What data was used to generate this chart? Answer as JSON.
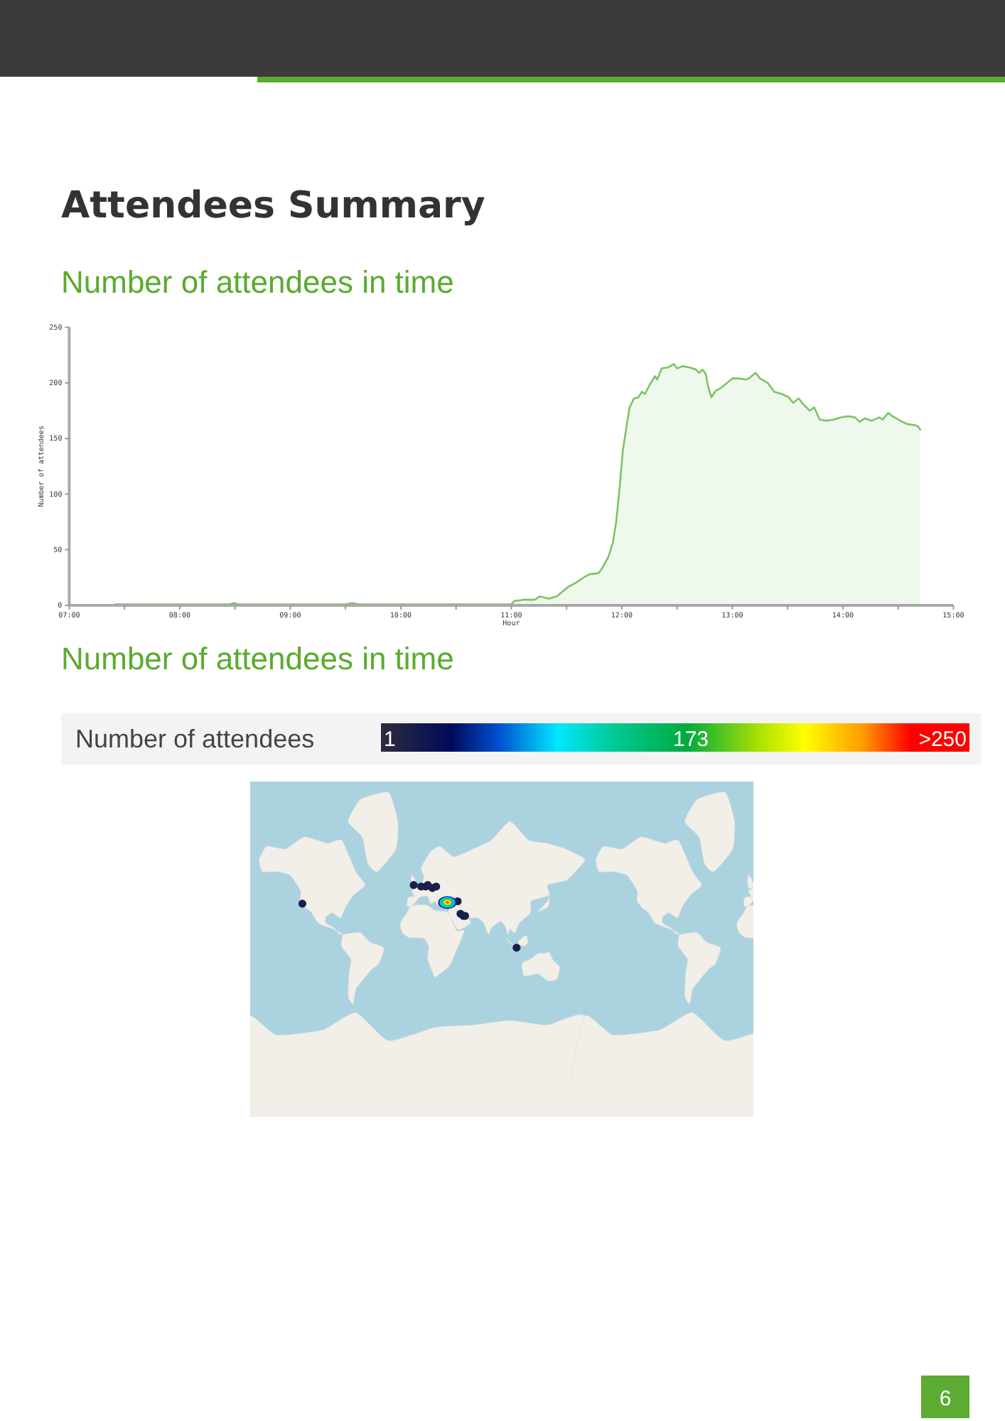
{
  "chart_data": [
    {
      "type": "area",
      "title": "Attendees Summary",
      "subtitle": "Number of attendees in time",
      "xlabel": "Hour",
      "ylabel": "Number of attendees",
      "color": "#7bc463",
      "x": [
        7.42,
        8.45,
        8.49,
        8.53,
        9.5,
        9.56,
        9.62,
        10.5,
        11.0,
        11.03,
        11.11,
        11.21,
        11.26,
        11.34,
        11.41,
        11.47,
        11.52,
        11.58,
        11.67,
        11.71,
        11.79,
        11.82,
        11.88,
        11.92,
        11.95,
        11.98,
        12.01,
        12.04,
        12.07,
        12.11,
        12.15,
        12.18,
        12.21,
        12.25,
        12.3,
        12.32,
        12.36,
        12.42,
        12.47,
        12.5,
        12.55,
        12.61,
        12.67,
        12.7,
        12.73,
        12.76,
        12.78,
        12.81,
        12.85,
        12.89,
        12.94,
        13.0,
        13.06,
        13.12,
        13.15,
        13.21,
        13.25,
        13.32,
        13.38,
        13.45,
        13.51,
        13.55,
        13.6,
        13.64,
        13.7,
        13.74,
        13.79,
        13.85,
        13.92,
        13.98,
        14.05,
        14.11,
        14.15,
        14.2,
        14.26,
        14.33,
        14.36,
        14.41,
        14.45,
        14.52,
        14.58,
        14.65,
        14.68,
        14.7
      ],
      "values": [
        1,
        1,
        2,
        1,
        1,
        2,
        1,
        1,
        1,
        4,
        5,
        5,
        8,
        6,
        8,
        13,
        17,
        20,
        26,
        28,
        29,
        33,
        44,
        57,
        76,
        106,
        140,
        159,
        178,
        186,
        187,
        192,
        190,
        198,
        206,
        203,
        213,
        214,
        217,
        213,
        215,
        214,
        212,
        209,
        212,
        208,
        197,
        187,
        193,
        195,
        199,
        204,
        204,
        203,
        204,
        209,
        204,
        200,
        192,
        190,
        187,
        182,
        186,
        181,
        175,
        178,
        167,
        166,
        167,
        169,
        170,
        169,
        165,
        168,
        166,
        169,
        167,
        173,
        170,
        166,
        163,
        162,
        161,
        158
      ],
      "xlim": [
        7,
        15
      ],
      "xticks": [
        {
          "value": 7,
          "label": "07:00"
        },
        {
          "value": 7.5,
          "label": null
        },
        {
          "value": 8,
          "label": "08:00"
        },
        {
          "value": 8.5,
          "label": null
        },
        {
          "value": 9,
          "label": "09:00"
        },
        {
          "value": 9.5,
          "label": null
        },
        {
          "value": 10,
          "label": "10:00"
        },
        {
          "value": 10.5,
          "label": null
        },
        {
          "value": 11,
          "label": "11:00"
        },
        {
          "value": 11.5,
          "label": null
        },
        {
          "value": 12,
          "label": "12:00"
        },
        {
          "value": 12.5,
          "label": null
        },
        {
          "value": 13,
          "label": "13:00"
        },
        {
          "value": 13.5,
          "label": null
        },
        {
          "value": 14,
          "label": "14:00"
        },
        {
          "value": 14.5,
          "label": null
        },
        {
          "value": 15,
          "label": "15:00"
        }
      ],
      "ylim": [
        0,
        250
      ],
      "yticks": [
        0,
        50,
        100,
        150,
        200,
        250
      ]
    },
    {
      "type": "other",
      "title": "Number of attendees in time",
      "clabel": "Number of attendees",
      "annotations": [
        "1",
        "173",
        ">250",
        "6"
      ]
    }
  ]
}
